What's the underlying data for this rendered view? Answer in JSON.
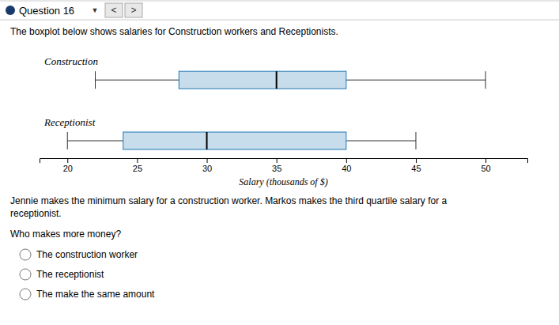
{
  "page": {
    "header": "Question 16",
    "menu_icon": "▼",
    "nav": [
      "<",
      ">"
    ],
    "description": "The boxplot below shows salaries for Construction workers and Receptionists.",
    "question": [
      "Jennie makes the minimum salary for a construction worker. Markos makes the third quartile salary for a",
      "receptionist."
    ],
    "prompt": "Who makes more money?",
    "options": [
      "The construction worker",
      "The receptionist",
      "The make the same amount"
    ]
  },
  "chart_data": {
    "type": "box",
    "orientation": "horizontal",
    "grid": false,
    "series": [
      {
        "name": "Construction",
        "min": 22,
        "q1": 28,
        "median": 35,
        "q3": 40,
        "max": 50
      },
      {
        "name": "Receptionist",
        "min": 20,
        "q1": 24,
        "median": 30,
        "q3": 40,
        "max": 45
      }
    ],
    "xlabel": "Salary (thousands of $)",
    "xlim": [
      18,
      53
    ],
    "xticks": [
      20,
      25,
      30,
      35,
      40,
      45,
      50
    ]
  }
}
